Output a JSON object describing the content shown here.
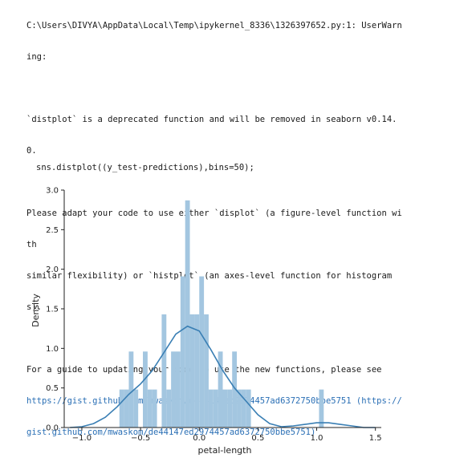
{
  "warning": {
    "path_line1": "C:\\Users\\DIVYA\\AppData\\Local\\Temp\\ipykernel_8336\\1326397652.py:1: UserWarn",
    "path_line2": "ing:",
    "deprecated_line1": "`distplot` is a deprecated function and will be removed in seaborn v0.14.",
    "deprecated_line2": "0.",
    "adapt_line1": "Please adapt your code to use either `displot` (a figure-level function wi",
    "adapt_line2": "th",
    "adapt_line3": "similar flexibility) or `histplot` (an axes-level function for histogram",
    "adapt_line4": "s).",
    "guide_line1": "For a guide to updating your code to use the new functions, please see",
    "guide_link1": "https://gist.github.com/mwaskom/de44147ed2974457ad6372750bbe5751 (https://",
    "guide_link2": "gist.github.com/mwaskom/de44147ed2974457ad6372750bbe5751)"
  },
  "code": {
    "line": "sns.distplot((y_test-predictions),bins=50);"
  },
  "colors": {
    "bar": "#a3c6e0",
    "kde": "#3a7fb4",
    "link": "#2a6fb5"
  },
  "chart_data": {
    "type": "bar",
    "xlabel": "petal-length",
    "ylabel": "Density",
    "xlim": [
      -1.15,
      1.55
    ],
    "ylim": [
      0,
      3.0
    ],
    "x_ticks": [
      -1.0,
      -0.5,
      0.0,
      0.5,
      1.0,
      1.5
    ],
    "x_tick_labels": [
      "−1.0",
      "−0.5",
      "0.0",
      "0.5",
      "1.0",
      "1.5"
    ],
    "y_ticks": [
      0.0,
      0.5,
      1.0,
      1.5,
      2.0,
      2.5,
      3.0
    ],
    "y_tick_labels": [
      "0.0",
      "0.5",
      "1.0",
      "1.5",
      "2.0",
      "2.5",
      "3.0"
    ],
    "bins": [
      {
        "x0": -0.68,
        "x1": -0.64,
        "y": 0.48
      },
      {
        "x0": -0.64,
        "x1": -0.6,
        "y": 0.48
      },
      {
        "x0": -0.6,
        "x1": -0.56,
        "y": 0.96
      },
      {
        "x0": -0.56,
        "x1": -0.52,
        "y": 0.48
      },
      {
        "x0": -0.48,
        "x1": -0.44,
        "y": 0.96
      },
      {
        "x0": -0.44,
        "x1": -0.4,
        "y": 0.48
      },
      {
        "x0": -0.4,
        "x1": -0.36,
        "y": 0.48
      },
      {
        "x0": -0.32,
        "x1": -0.28,
        "y": 1.43
      },
      {
        "x0": -0.28,
        "x1": -0.24,
        "y": 0.48
      },
      {
        "x0": -0.24,
        "x1": -0.2,
        "y": 0.96
      },
      {
        "x0": -0.2,
        "x1": -0.16,
        "y": 0.96
      },
      {
        "x0": -0.16,
        "x1": -0.12,
        "y": 1.91
      },
      {
        "x0": -0.12,
        "x1": -0.08,
        "y": 2.87
      },
      {
        "x0": -0.08,
        "x1": -0.04,
        "y": 1.43
      },
      {
        "x0": -0.04,
        "x1": 0.0,
        "y": 1.43
      },
      {
        "x0": 0.0,
        "x1": 0.04,
        "y": 1.91
      },
      {
        "x0": 0.04,
        "x1": 0.08,
        "y": 1.43
      },
      {
        "x0": 0.08,
        "x1": 0.12,
        "y": 0.48
      },
      {
        "x0": 0.12,
        "x1": 0.16,
        "y": 0.48
      },
      {
        "x0": 0.16,
        "x1": 0.2,
        "y": 0.96
      },
      {
        "x0": 0.2,
        "x1": 0.24,
        "y": 0.48
      },
      {
        "x0": 0.24,
        "x1": 0.28,
        "y": 0.48
      },
      {
        "x0": 0.28,
        "x1": 0.32,
        "y": 0.96
      },
      {
        "x0": 0.32,
        "x1": 0.36,
        "y": 0.48
      },
      {
        "x0": 0.36,
        "x1": 0.4,
        "y": 0.48
      },
      {
        "x0": 0.4,
        "x1": 0.44,
        "y": 0.48
      },
      {
        "x0": 1.02,
        "x1": 1.06,
        "y": 0.48
      }
    ],
    "kde": {
      "x": [
        -1.1,
        -1.0,
        -0.9,
        -0.8,
        -0.7,
        -0.6,
        -0.5,
        -0.4,
        -0.3,
        -0.2,
        -0.1,
        0.0,
        0.1,
        0.2,
        0.3,
        0.4,
        0.5,
        0.6,
        0.7,
        0.8,
        0.9,
        1.0,
        1.1,
        1.2,
        1.3,
        1.4,
        1.5
      ],
      "y": [
        0.0,
        0.01,
        0.05,
        0.13,
        0.26,
        0.42,
        0.55,
        0.72,
        0.95,
        1.18,
        1.28,
        1.22,
        0.98,
        0.72,
        0.5,
        0.33,
        0.16,
        0.05,
        0.01,
        0.02,
        0.04,
        0.06,
        0.06,
        0.04,
        0.02,
        0.0,
        0.0
      ]
    }
  }
}
